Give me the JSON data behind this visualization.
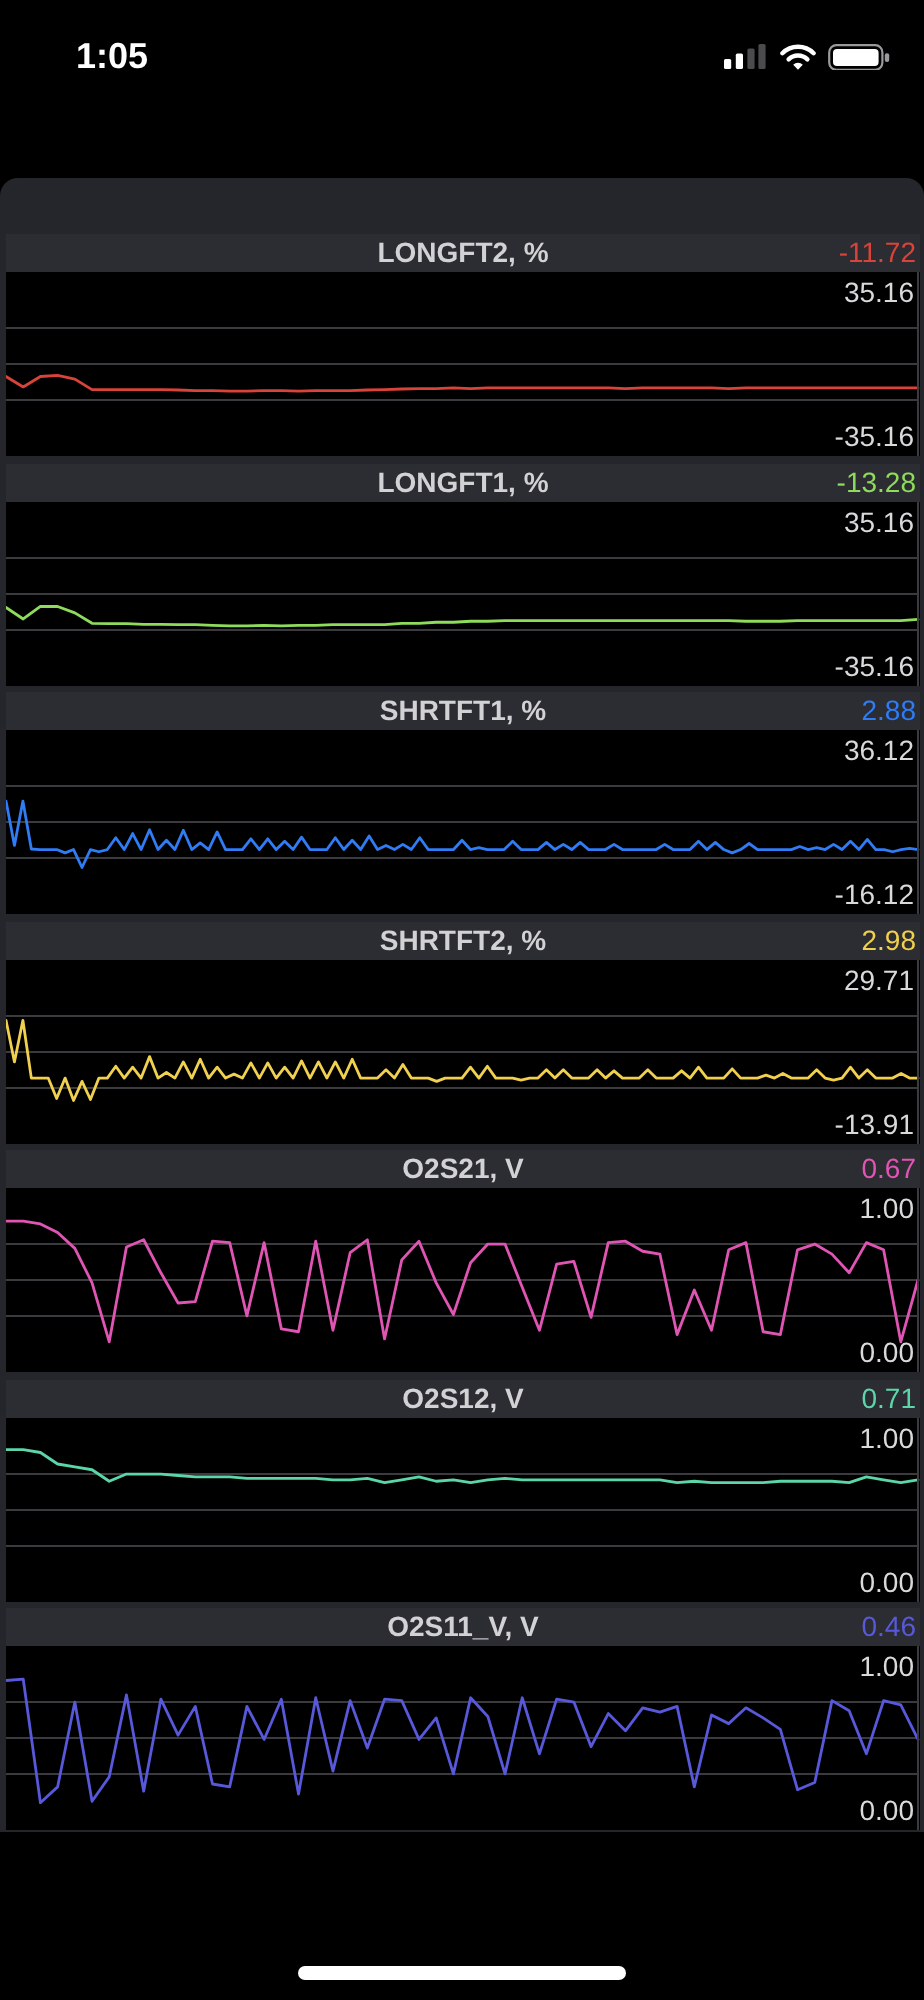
{
  "chart_data": [
    {
      "type": "line",
      "title": "LONGFT2, %",
      "annotations": [
        "-11.72",
        "1:05"
      ],
      "categories": [
        null,
        null,
        null,
        null,
        null,
        null,
        null,
        null,
        null,
        null,
        null,
        null,
        null,
        null,
        null,
        null,
        null,
        null,
        null,
        null,
        null,
        null,
        null,
        null,
        null,
        null,
        null,
        null,
        null,
        null,
        null,
        null,
        null,
        null,
        null,
        null,
        null,
        null,
        null,
        null,
        null,
        null,
        null,
        null,
        null,
        null,
        null,
        null,
        null,
        null,
        null,
        null,
        null,
        null
      ],
      "values": [
        -6.1,
        -11.2,
        -6.1,
        -5.6,
        -7.4,
        -12.5,
        -12.5,
        -12.5,
        -12.5,
        -12.5,
        -12.7,
        -13,
        -13,
        -13.2,
        -13.2,
        -13,
        -13,
        -13.2,
        -13,
        -13,
        -13,
        -12.7,
        -12.5,
        -12.2,
        -12,
        -12,
        -11.7,
        -12,
        -11.7,
        -11.7,
        -11.7,
        -11.7,
        -11.7,
        -11.7,
        -11.7,
        -11.7,
        -12,
        -11.7,
        -11.7,
        -11.7,
        -11.7,
        -11.7,
        -12,
        -11.7,
        -11.7,
        -11.7,
        -11.7,
        -11.7,
        -11.7,
        -11.7,
        -11.7,
        -11.7,
        -11.7,
        -11.7
      ],
      "color": "#d9433a",
      "ylim": [
        -44.93,
        44.93
      ],
      "yticks": [
        -35.16,
        {
          "value": -17.58,
          "label": null
        },
        {
          "value": 0,
          "label": null
        },
        {
          "value": 17.58,
          "label": null
        },
        35.16
      ],
      "grid": "y",
      "tick_labels": "y"
    },
    {
      "type": "line",
      "title": "LONGFT1, %",
      "annotations": [
        "-13.28"
      ],
      "categories": [
        null,
        null,
        null,
        null,
        null,
        null,
        null,
        null,
        null,
        null,
        null,
        null,
        null,
        null,
        null,
        null,
        null,
        null,
        null,
        null,
        null,
        null,
        null,
        null,
        null,
        null,
        null,
        null,
        null,
        null,
        null,
        null,
        null,
        null,
        null,
        null,
        null,
        null,
        null,
        null,
        null,
        null,
        null,
        null,
        null,
        null,
        null,
        null,
        null,
        null,
        null,
        null,
        null,
        null
      ],
      "values": [
        -6.6,
        -12.2,
        -6.1,
        -6.1,
        -9.2,
        -14.3,
        -14.5,
        -14.5,
        -14.8,
        -14.8,
        -15,
        -15,
        -15.3,
        -15.6,
        -15.6,
        -15.3,
        -15.6,
        -15.3,
        -15.3,
        -15,
        -15,
        -15,
        -15,
        -14.3,
        -14.3,
        -13.8,
        -13.8,
        -13.3,
        -13.3,
        -13,
        -13,
        -13,
        -13,
        -13,
        -13,
        -13,
        -13,
        -13,
        -13,
        -13,
        -13,
        -13,
        -13,
        -13.3,
        -13.3,
        -13.3,
        -13,
        -13,
        -13,
        -13,
        -13,
        -13,
        -13,
        -12.4
      ],
      "color": "#8fdc5c",
      "ylim": [
        -44.93,
        44.93
      ],
      "yticks": [
        -35.16,
        {
          "value": -17.58,
          "label": null
        },
        {
          "value": 0,
          "label": null
        },
        {
          "value": 17.58,
          "label": null
        },
        35.16
      ],
      "grid": "y",
      "tick_labels": "y"
    },
    {
      "type": "line",
      "title": "SHRTFT1, %",
      "annotations": [
        "2.88"
      ],
      "categories": [
        null,
        null,
        null,
        null,
        null,
        null,
        null,
        null,
        null,
        null,
        null,
        null,
        null,
        null,
        null,
        null,
        null,
        null,
        null,
        null,
        null,
        null,
        null,
        null,
        null,
        null,
        null,
        null,
        null,
        null,
        null,
        null,
        null,
        null,
        null,
        null,
        null,
        null,
        null,
        null,
        null,
        null,
        null,
        null,
        null,
        null,
        null,
        null,
        null,
        null,
        null,
        null,
        null,
        null,
        null,
        null,
        null,
        null,
        null,
        null,
        null,
        null,
        null,
        null,
        null,
        null,
        null,
        null,
        null,
        null,
        null,
        null,
        null,
        null,
        null,
        null,
        null,
        null,
        null,
        null,
        null,
        null,
        null,
        null,
        null,
        null,
        null,
        null,
        null,
        null,
        null,
        null,
        null,
        null,
        null,
        null,
        null,
        null,
        null,
        null,
        null,
        null,
        null,
        null,
        null,
        null,
        null,
        null,
        null
      ],
      "values": [
        17.6,
        1.5,
        17.6,
        0.2,
        0,
        0,
        0,
        -1.2,
        0,
        -6.5,
        0,
        -0.8,
        0,
        4.3,
        0,
        5.8,
        0,
        7.2,
        0,
        3.4,
        0,
        7,
        0,
        2.4,
        0,
        6.4,
        0,
        0,
        0,
        3.9,
        0,
        3.9,
        0,
        3,
        0,
        4.5,
        0,
        0,
        0,
        4.3,
        0,
        3.4,
        0,
        4.9,
        0,
        1.5,
        0,
        1.9,
        0,
        4.3,
        0,
        0,
        0,
        0,
        3.4,
        0,
        0.7,
        0,
        0,
        0,
        3,
        0,
        0,
        0,
        2.6,
        0,
        1.9,
        0,
        2.6,
        0,
        0,
        0,
        1.9,
        0,
        0,
        0,
        0,
        0,
        1.9,
        0,
        0,
        0,
        3,
        0,
        2.6,
        0,
        -1.2,
        0,
        2.2,
        0,
        0,
        0,
        0,
        0,
        1.1,
        0,
        0.7,
        0,
        1.9,
        0,
        3,
        0,
        3.7,
        0,
        0,
        -0.8,
        0,
        0.4,
        0
      ],
      "color": "#2f7cf4",
      "ylim": [
        -23.38,
        43.38
      ],
      "yticks": [
        -16.12,
        {
          "value": -3.06,
          "label": null
        },
        {
          "value": 10,
          "label": null
        },
        {
          "value": 23.06,
          "label": null
        },
        36.12
      ],
      "grid": "y",
      "tick_labels": "y"
    },
    {
      "type": "line",
      "title": "SHRTFT2, %",
      "annotations": [
        "2.98"
      ],
      "categories": [
        null,
        null,
        null,
        null,
        null,
        null,
        null,
        null,
        null,
        null,
        null,
        null,
        null,
        null,
        null,
        null,
        null,
        null,
        null,
        null,
        null,
        null,
        null,
        null,
        null,
        null,
        null,
        null,
        null,
        null,
        null,
        null,
        null,
        null,
        null,
        null,
        null,
        null,
        null,
        null,
        null,
        null,
        null,
        null,
        null,
        null,
        null,
        null,
        null,
        null,
        null,
        null,
        null,
        null,
        null,
        null,
        null,
        null,
        null,
        null,
        null,
        null,
        null,
        null,
        null,
        null,
        null,
        null,
        null,
        null,
        null,
        null,
        null,
        null,
        null,
        null,
        null,
        null,
        null,
        null,
        null,
        null,
        null,
        null,
        null,
        null,
        null,
        null,
        null,
        null,
        null,
        null,
        null,
        null,
        null,
        null,
        null,
        null,
        null,
        null,
        null,
        null,
        null,
        null,
        null,
        null,
        null,
        null,
        null
      ],
      "values": [
        17.5,
        4.9,
        17.5,
        0,
        0,
        0,
        -6.2,
        0,
        -6.8,
        -1,
        -6.5,
        0,
        0,
        3.6,
        0,
        3.3,
        0,
        6.5,
        0,
        1.7,
        0,
        4.9,
        0,
        5.7,
        0,
        3.3,
        0,
        1.2,
        0,
        4.6,
        0,
        4.6,
        0,
        3.3,
        0,
        5.2,
        0,
        4.9,
        0,
        4.9,
        0,
        5.7,
        0,
        0,
        0,
        2.5,
        0,
        4.1,
        0,
        0,
        0,
        -1,
        0,
        0,
        0,
        3.3,
        0,
        3.6,
        0,
        0,
        0,
        -0.6,
        0,
        0,
        2.5,
        0,
        2.5,
        0,
        0,
        0,
        2.5,
        0,
        2.2,
        0,
        0,
        0,
        2.5,
        0,
        0,
        0,
        2.2,
        0,
        3.3,
        0,
        0,
        0,
        2.8,
        0,
        0,
        0,
        0.9,
        0,
        1.4,
        0,
        0,
        0,
        2.5,
        0,
        -0.6,
        0,
        3.3,
        0,
        2.5,
        0,
        0,
        0,
        1.4,
        0,
        0
      ],
      "color": "#f0d04e",
      "ylim": [
        -19.97,
        35.77
      ],
      "yticks": [
        -13.91,
        {
          "value": -3.01,
          "label": null
        },
        {
          "value": 7.9,
          "label": null
        },
        {
          "value": 18.81,
          "label": null
        },
        29.71
      ],
      "grid": "y",
      "tick_labels": "y"
    },
    {
      "type": "line",
      "title": "O2S21, V",
      "annotations": [
        "0.67"
      ],
      "categories": [
        null,
        null,
        null,
        null,
        null,
        null,
        null,
        null,
        null,
        null,
        null,
        null,
        null,
        null,
        null,
        null,
        null,
        null,
        null,
        null,
        null,
        null,
        null,
        null,
        null,
        null,
        null,
        null,
        null,
        null,
        null,
        null,
        null,
        null,
        null,
        null,
        null,
        null,
        null,
        null,
        null,
        null,
        null,
        null,
        null,
        null,
        null,
        null,
        null,
        null,
        null,
        null,
        null,
        null
      ],
      "values": [
        0.91,
        0.91,
        0.89,
        0.83,
        0.72,
        0.48,
        0.07,
        0.73,
        0.78,
        0.55,
        0.34,
        0.35,
        0.77,
        0.76,
        0.25,
        0.76,
        0.16,
        0.14,
        0.77,
        0.15,
        0.69,
        0.78,
        0.09,
        0.64,
        0.77,
        0.48,
        0.26,
        0.62,
        0.75,
        0.75,
        0.45,
        0.15,
        0.61,
        0.63,
        0.24,
        0.76,
        0.77,
        0.7,
        0.68,
        0.12,
        0.43,
        0.15,
        0.71,
        0.76,
        0.14,
        0.12,
        0.71,
        0.75,
        0.68,
        0.55,
        0.76,
        0.71,
        0.07,
        0.5
      ],
      "color": "#e055b4",
      "ylim": [
        -0.14,
        1.14
      ],
      "yticks": [
        {
          "value": 0,
          "label": "0.00"
        },
        {
          "value": 0.25,
          "label": null
        },
        {
          "value": 0.5,
          "label": null
        },
        {
          "value": 0.75,
          "label": null
        },
        {
          "value": 1,
          "label": "1.00"
        }
      ],
      "grid": "y",
      "tick_labels": "y"
    },
    {
      "type": "line",
      "title": "O2S12, V",
      "annotations": [
        "0.71"
      ],
      "categories": [
        null,
        null,
        null,
        null,
        null,
        null,
        null,
        null,
        null,
        null,
        null,
        null,
        null,
        null,
        null,
        null,
        null,
        null,
        null,
        null,
        null,
        null,
        null,
        null,
        null,
        null,
        null,
        null,
        null,
        null,
        null,
        null,
        null,
        null,
        null,
        null,
        null,
        null,
        null,
        null,
        null,
        null,
        null,
        null,
        null,
        null,
        null,
        null,
        null,
        null,
        null,
        null,
        null,
        null
      ],
      "values": [
        0.92,
        0.92,
        0.9,
        0.82,
        0.8,
        0.78,
        0.7,
        0.75,
        0.75,
        0.75,
        0.74,
        0.73,
        0.73,
        0.73,
        0.72,
        0.72,
        0.72,
        0.72,
        0.72,
        0.71,
        0.71,
        0.72,
        0.69,
        0.71,
        0.73,
        0.7,
        0.71,
        0.69,
        0.71,
        0.72,
        0.71,
        0.71,
        0.71,
        0.71,
        0.71,
        0.71,
        0.71,
        0.71,
        0.71,
        0.69,
        0.7,
        0.69,
        0.69,
        0.69,
        0.69,
        0.7,
        0.7,
        0.7,
        0.7,
        0.69,
        0.73,
        0.71,
        0.69,
        0.71
      ],
      "color": "#5cd6a8",
      "ylim": [
        -0.14,
        1.14
      ],
      "yticks": [
        {
          "value": 0,
          "label": "0.00"
        },
        {
          "value": 0.25,
          "label": null
        },
        {
          "value": 0.5,
          "label": null
        },
        {
          "value": 0.75,
          "label": null
        },
        {
          "value": 1,
          "label": "1.00"
        }
      ],
      "grid": "y",
      "tick_labels": "y"
    },
    {
      "type": "line",
      "title": "O2S11_V, V",
      "annotations": [
        "0.46"
      ],
      "categories": [
        null,
        null,
        null,
        null,
        null,
        null,
        null,
        null,
        null,
        null,
        null,
        null,
        null,
        null,
        null,
        null,
        null,
        null,
        null,
        null,
        null,
        null,
        null,
        null,
        null,
        null,
        null,
        null,
        null,
        null,
        null,
        null,
        null,
        null,
        null,
        null,
        null,
        null,
        null,
        null,
        null,
        null,
        null,
        null,
        null,
        null,
        null,
        null,
        null,
        null,
        null,
        null,
        null,
        null
      ],
      "values": [
        0.9,
        0.91,
        0.05,
        0.16,
        0.75,
        0.06,
        0.23,
        0.8,
        0.13,
        0.77,
        0.52,
        0.72,
        0.18,
        0.16,
        0.72,
        0.49,
        0.77,
        0.11,
        0.78,
        0.27,
        0.76,
        0.43,
        0.77,
        0.76,
        0.49,
        0.64,
        0.25,
        0.78,
        0.65,
        0.25,
        0.78,
        0.39,
        0.77,
        0.75,
        0.44,
        0.67,
        0.55,
        0.71,
        0.68,
        0.72,
        0.16,
        0.66,
        0.6,
        0.71,
        0.64,
        0.56,
        0.14,
        0.19,
        0.76,
        0.69,
        0.39,
        0.76,
        0.73,
        0.49
      ],
      "color": "#5858da",
      "ylim": [
        -0.14,
        1.14
      ],
      "yticks": [
        {
          "value": 0,
          "label": "0.00"
        },
        {
          "value": 0.25,
          "label": null
        },
        {
          "value": 0.5,
          "label": null
        },
        {
          "value": 0.75,
          "label": null
        },
        {
          "value": 1,
          "label": "1.00"
        }
      ],
      "grid": "y",
      "tick_labels": "y"
    }
  ]
}
